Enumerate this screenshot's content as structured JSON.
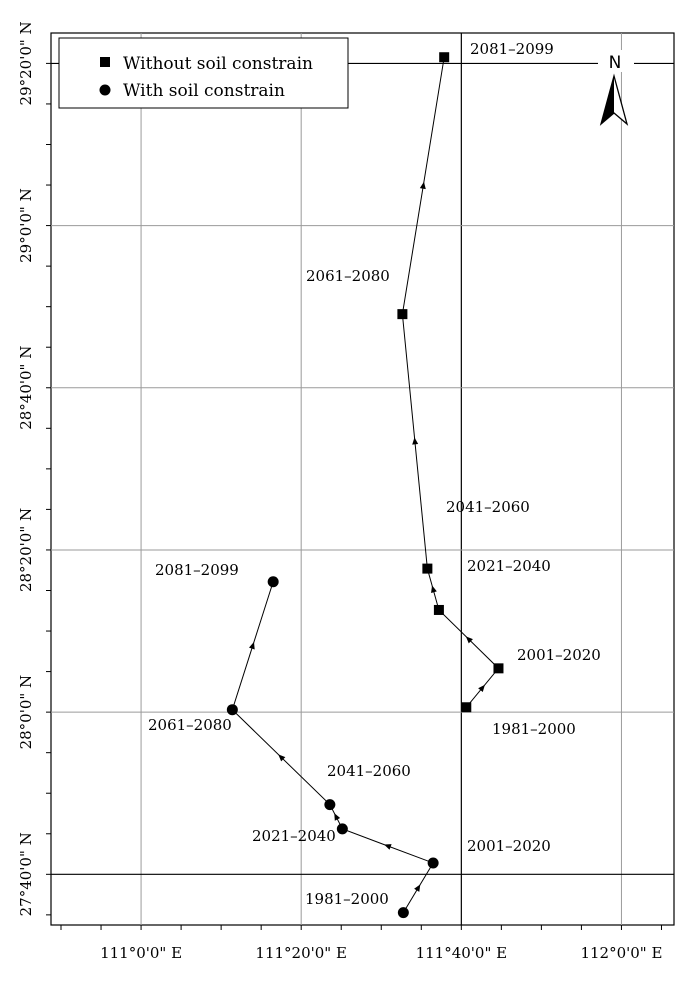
{
  "axes": {
    "x_ticks": [
      {
        "value": 111.0,
        "label": "111°0'0\" E"
      },
      {
        "value": 111.3333,
        "label": "111°20'0\" E"
      },
      {
        "value": 111.6667,
        "label": "111°40'0\" E"
      },
      {
        "value": 112.0,
        "label": "112°0'0\" E"
      }
    ],
    "y_ticks": [
      {
        "value": 27.6667,
        "label": "27°40'0\" N"
      },
      {
        "value": 28.0,
        "label": "28°0'0\" N"
      },
      {
        "value": 28.3333,
        "label": "28°20'0\" N"
      },
      {
        "value": 28.6667,
        "label": "28°40'0\" N"
      },
      {
        "value": 29.0,
        "label": "29°0'0\" N"
      },
      {
        "value": 29.3333,
        "label": "29°20'0\" N"
      }
    ],
    "xlim": [
      110.8125,
      112.1094
    ],
    "ylim": [
      27.5625,
      29.3958
    ],
    "grid": true
  },
  "legend": {
    "position": "top-left",
    "items": [
      {
        "marker": "square",
        "label": "Without soil constrain"
      },
      {
        "marker": "circle",
        "label": "With soil constrain"
      }
    ]
  },
  "north_arrow": {
    "label": "N"
  },
  "series": [
    {
      "marker": "square",
      "points": [
        {
          "period": "1981–2000",
          "lon": 111.677,
          "lat": 28.01
        },
        {
          "period": "2001–2020",
          "lon": 111.744,
          "lat": 28.09
        },
        {
          "period": "2021–2040",
          "lon": 111.62,
          "lat": 28.21
        },
        {
          "period": "2041–2060",
          "lon": 111.596,
          "lat": 28.295
        },
        {
          "period": "2061–2080",
          "lon": 111.544,
          "lat": 28.818
        },
        {
          "period": "2081–2099",
          "lon": 111.631,
          "lat": 29.346
        }
      ]
    },
    {
      "marker": "circle",
      "points": [
        {
          "period": "1981–2000",
          "lon": 111.546,
          "lat": 27.588
        },
        {
          "period": "2001–2020",
          "lon": 111.608,
          "lat": 27.69
        },
        {
          "period": "2021–2040",
          "lon": 111.419,
          "lat": 27.76
        },
        {
          "period": "2041–2060",
          "lon": 111.393,
          "lat": 27.81
        },
        {
          "period": "2061–2080",
          "lon": 111.19,
          "lat": 28.005
        },
        {
          "period": "2081–2099",
          "lon": 111.275,
          "lat": 28.268
        }
      ]
    }
  ]
}
